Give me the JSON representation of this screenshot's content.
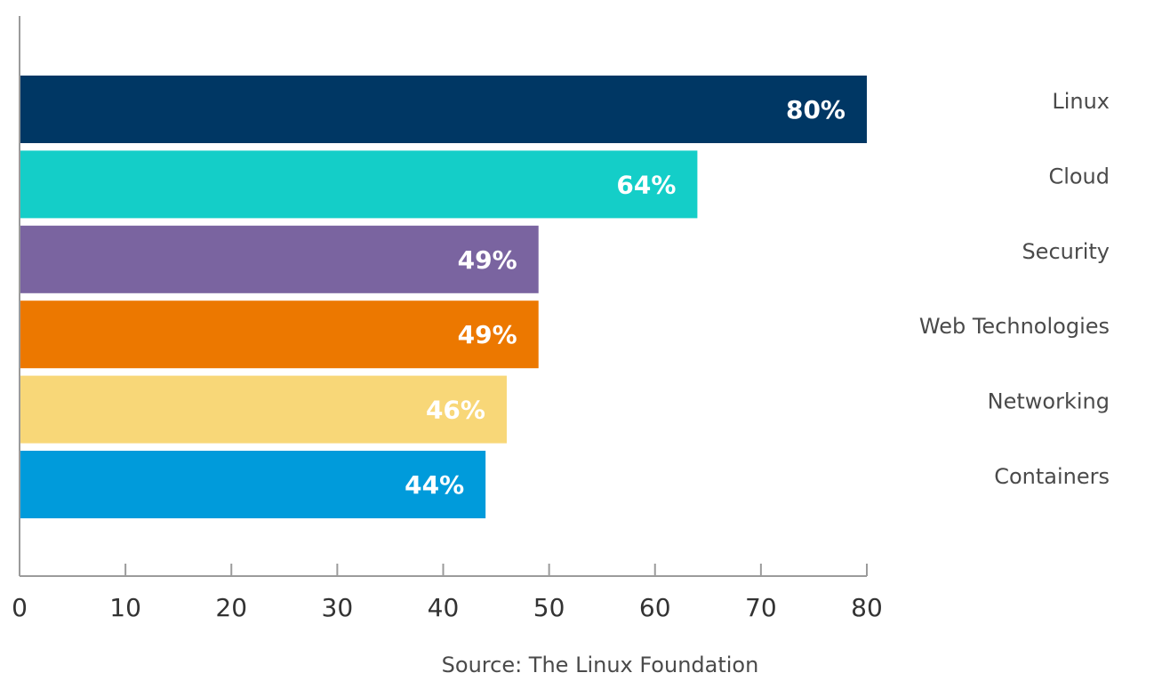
{
  "chart_data": {
    "type": "bar",
    "orientation": "horizontal",
    "categories": [
      "Linux",
      "Cloud",
      "Security",
      "Web Technologies",
      "Networking",
      "Containers"
    ],
    "values": [
      80,
      64,
      49,
      49,
      46,
      44
    ],
    "value_labels": [
      "80%",
      "64%",
      "49%",
      "49%",
      "46%",
      "44%"
    ],
    "colors": [
      "#003764",
      "#14cec8",
      "#7a64a0",
      "#ec7800",
      "#f8d778",
      "#009bdb"
    ],
    "xlim": [
      0,
      80
    ],
    "xticks": [
      0,
      10,
      20,
      30,
      40,
      50,
      60,
      70,
      80
    ],
    "title": "",
    "xlabel": "",
    "ylabel": "",
    "legend": "none",
    "grid": false,
    "category_label_position": "right"
  },
  "source": "Source: The Linux Foundation"
}
